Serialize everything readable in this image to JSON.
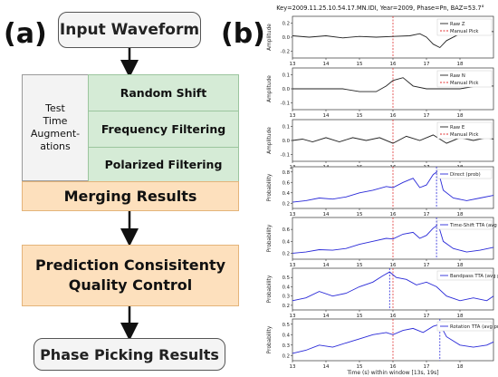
{
  "panel_a": {
    "label": "(a)",
    "input_box": "Input Waveform",
    "tta_label_lines": [
      "Test",
      "Time",
      "Augment-",
      "ations"
    ],
    "augmentations": [
      "Random Shift",
      "Frequency Filtering",
      "Polarized Filtering"
    ],
    "merging": "Merging Results",
    "qc_line1": "Prediction Consisitenty",
    "qc_line2": "Quality Control",
    "output_box": "Phase Picking Results"
  },
  "panel_b": {
    "label": "(b)",
    "title": "Key=2009.11.25.10.54.17.MN.IDI, Year=2009, Phase=Pn, BAZ=53.7°",
    "xlabel": "Time (s) within window [13s, 19s]",
    "x_ticks": [
      "13",
      "14",
      "15",
      "16",
      "17",
      "18"
    ],
    "manual_pick_label": "Manual Pick",
    "colors": {
      "waveform": "#222222",
      "prob": "#2a2ad8",
      "manual_pick": "#e03030",
      "pred_pick": "#2a2ad8"
    }
  },
  "chart_data": [
    {
      "type": "line",
      "ylabel": "Amplitude",
      "legend": [
        "Raw Z",
        "Manual Pick"
      ],
      "yticks": [
        "0.2",
        "0.0",
        "-0.2"
      ],
      "ylim": [
        -0.3,
        0.3
      ],
      "xlim": [
        13,
        19
      ],
      "manual_pick": 16.0,
      "x": [
        13,
        13.5,
        14,
        14.5,
        15,
        15.5,
        16,
        16.5,
        16.8,
        17,
        17.2,
        17.4,
        17.6,
        18,
        18.5,
        19
      ],
      "values": [
        0.02,
        0.0,
        0.02,
        -0.01,
        0.01,
        0.0,
        0.01,
        0.02,
        0.05,
        0.0,
        -0.1,
        -0.15,
        -0.05,
        0.05,
        0.1,
        0.08
      ]
    },
    {
      "type": "line",
      "ylabel": "Amplitude",
      "legend": [
        "Raw N",
        "Manual Pick"
      ],
      "yticks": [
        "0.1",
        "0.0",
        "-0.1"
      ],
      "ylim": [
        -0.15,
        0.15
      ],
      "xlim": [
        13,
        19
      ],
      "manual_pick": 16.0,
      "x": [
        13,
        13.5,
        14,
        14.5,
        15,
        15.5,
        15.8,
        16,
        16.3,
        16.6,
        17,
        17.5,
        18,
        18.5,
        19
      ],
      "values": [
        0.0,
        0.0,
        0.0,
        0.0,
        -0.02,
        -0.02,
        0.02,
        0.06,
        0.08,
        0.02,
        0.0,
        0.0,
        0.0,
        0.02,
        0.02
      ]
    },
    {
      "type": "line",
      "ylabel": "Amplitude",
      "legend": [
        "Raw E",
        "Manual Pick"
      ],
      "yticks": [
        "0.1",
        "0.0",
        "-0.1"
      ],
      "ylim": [
        -0.15,
        0.15
      ],
      "xlim": [
        13,
        19
      ],
      "manual_pick": 16.0,
      "x": [
        13,
        13.3,
        13.6,
        14,
        14.4,
        14.8,
        15.2,
        15.6,
        16,
        16.4,
        16.8,
        17.2,
        17.6,
        18,
        18.4,
        18.8,
        19
      ],
      "values": [
        0.0,
        0.01,
        -0.01,
        0.02,
        -0.01,
        0.02,
        0.0,
        0.02,
        -0.02,
        0.03,
        0.0,
        0.04,
        -0.02,
        0.02,
        0.0,
        0.02,
        0.01
      ]
    },
    {
      "type": "line",
      "ylabel": "Probability",
      "legend": [
        "Direct (prob)"
      ],
      "yticks": [
        "0.8",
        "0.6",
        "0.4",
        "0.2"
      ],
      "ylim": [
        0.1,
        0.9
      ],
      "xlim": [
        13,
        19
      ],
      "manual_pick": 16.0,
      "pred_pick": 17.3,
      "x": [
        13,
        13.4,
        13.8,
        14.2,
        14.6,
        15,
        15.4,
        15.8,
        16,
        16.3,
        16.6,
        16.8,
        17,
        17.2,
        17.35,
        17.5,
        17.8,
        18.2,
        18.6,
        19
      ],
      "values": [
        0.22,
        0.25,
        0.3,
        0.28,
        0.32,
        0.4,
        0.45,
        0.52,
        0.5,
        0.6,
        0.68,
        0.5,
        0.55,
        0.75,
        0.82,
        0.45,
        0.3,
        0.25,
        0.3,
        0.35
      ]
    },
    {
      "type": "line",
      "ylabel": "Probability",
      "legend": [
        "Time-Shift TTA (avg prob)"
      ],
      "yticks": [
        "0.6",
        "0.4",
        "0.2"
      ],
      "ylim": [
        0.1,
        0.8
      ],
      "xlim": [
        13,
        19
      ],
      "manual_pick": 16.0,
      "pred_pick": 17.3,
      "x": [
        13,
        13.4,
        13.8,
        14.2,
        14.6,
        15,
        15.4,
        15.8,
        16,
        16.3,
        16.6,
        16.8,
        17,
        17.2,
        17.35,
        17.5,
        17.8,
        18.2,
        18.6,
        19
      ],
      "values": [
        0.2,
        0.22,
        0.26,
        0.25,
        0.28,
        0.35,
        0.4,
        0.45,
        0.44,
        0.52,
        0.55,
        0.45,
        0.5,
        0.62,
        0.68,
        0.4,
        0.28,
        0.22,
        0.25,
        0.3
      ]
    },
    {
      "type": "line",
      "ylabel": "Probability",
      "legend": [
        "Bandpass TTA (avg prob)"
      ],
      "yticks": [
        "0.5",
        "0.4",
        "0.3",
        "0.2"
      ],
      "ylim": [
        0.15,
        0.6
      ],
      "xlim": [
        13,
        19
      ],
      "manual_pick": 16.0,
      "pred_pick": 15.9,
      "x": [
        13,
        13.4,
        13.8,
        14.2,
        14.6,
        15,
        15.4,
        15.7,
        15.9,
        16.1,
        16.4,
        16.7,
        17,
        17.3,
        17.6,
        18,
        18.4,
        18.8,
        19
      ],
      "values": [
        0.25,
        0.28,
        0.35,
        0.3,
        0.33,
        0.4,
        0.45,
        0.52,
        0.56,
        0.5,
        0.48,
        0.42,
        0.45,
        0.4,
        0.3,
        0.25,
        0.28,
        0.25,
        0.3
      ]
    },
    {
      "type": "line",
      "ylabel": "Probability",
      "legend": [
        "Rotation TTA (avg prob)"
      ],
      "yticks": [
        "0.5",
        "0.4",
        "0.3",
        "0.2"
      ],
      "ylim": [
        0.15,
        0.55
      ],
      "xlim": [
        13,
        19
      ],
      "manual_pick": 16.0,
      "pred_pick": 17.4,
      "x": [
        13,
        13.4,
        13.8,
        14.2,
        14.6,
        15,
        15.4,
        15.8,
        16,
        16.3,
        16.6,
        16.9,
        17.2,
        17.4,
        17.6,
        18,
        18.4,
        18.8,
        19
      ],
      "values": [
        0.22,
        0.25,
        0.3,
        0.28,
        0.32,
        0.36,
        0.4,
        0.42,
        0.4,
        0.44,
        0.46,
        0.42,
        0.48,
        0.5,
        0.38,
        0.3,
        0.28,
        0.3,
        0.33
      ]
    }
  ]
}
